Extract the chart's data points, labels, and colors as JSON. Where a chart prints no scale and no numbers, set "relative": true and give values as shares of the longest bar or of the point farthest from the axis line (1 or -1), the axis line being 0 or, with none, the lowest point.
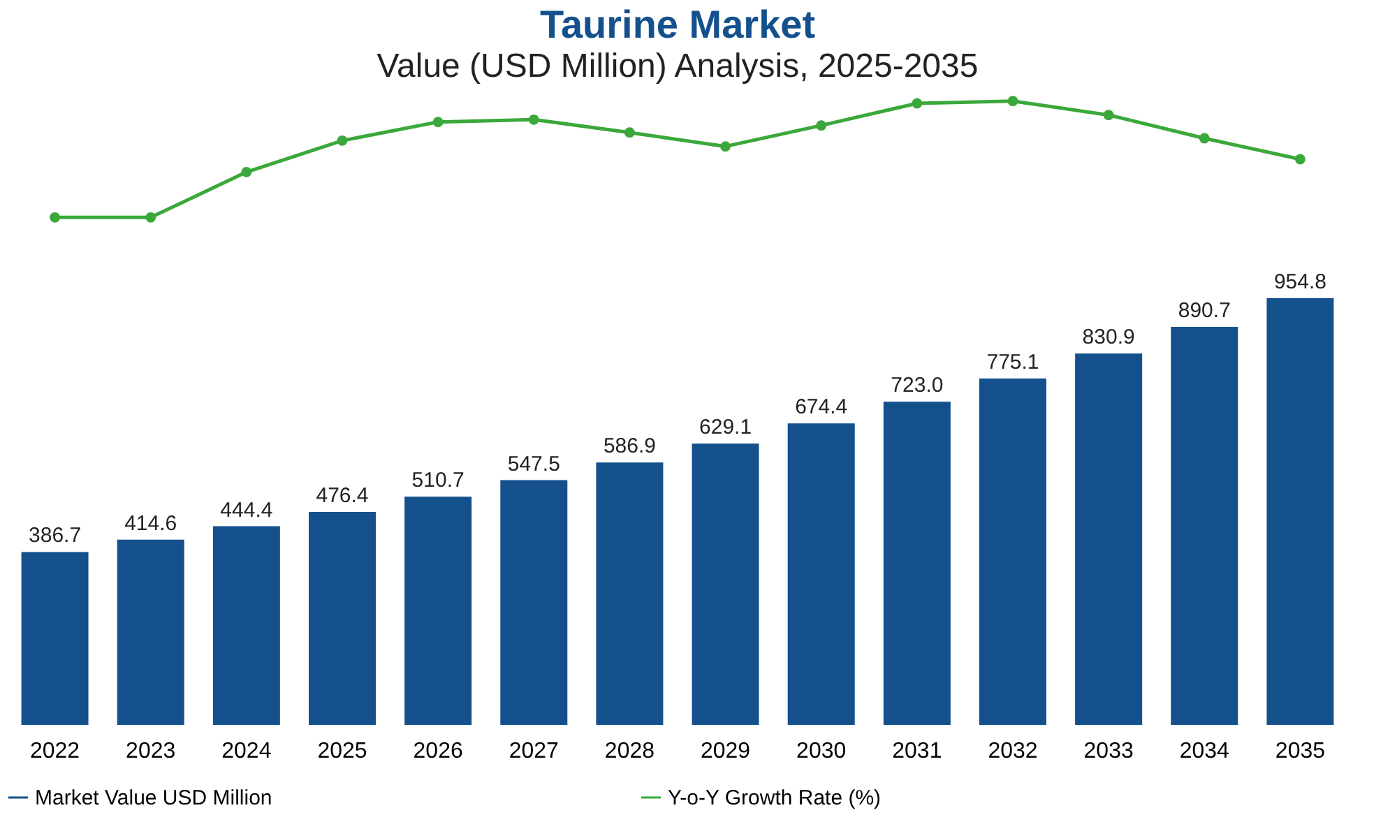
{
  "chart_data": [
    {
      "type": "line",
      "title": "Taurine Market",
      "subtitle": "Value (USD Million) Analysis, 2025-2035",
      "categories": [
        "2022",
        "2023",
        "2024",
        "2025",
        "2026",
        "2027",
        "2028",
        "2029",
        "2030",
        "2031",
        "2032",
        "2033",
        "2034",
        "2035"
      ],
      "series": [
        {
          "name": "Y-o-Y Growth Rate (%)",
          "color": "#3aa83a",
          "values": [
            0,
            0,
            0.39,
            0.66,
            0.82,
            0.84,
            0.73,
            0.61,
            0.79,
            0.98,
            1,
            0.88,
            0.68,
            0.5
          ]
        }
      ],
      "relative": true,
      "marker": "circle",
      "tick_labels": false,
      "line_style": "solid"
    },
    {
      "type": "bar",
      "categories": [
        "2022",
        "2023",
        "2024",
        "2025",
        "2026",
        "2027",
        "2028",
        "2029",
        "2030",
        "2031",
        "2032",
        "2033",
        "2034",
        "2035"
      ],
      "series": [
        {
          "name": "Market Value USD Million",
          "color": "#14518c",
          "values": [
            386.7,
            414.6,
            444.4,
            476.4,
            510.7,
            547.5,
            586.9,
            629.1,
            674.4,
            723.0,
            775.1,
            830.9,
            890.7,
            954.8
          ],
          "value_labels": [
            "386.7",
            "414.6",
            "444.4",
            "476.4",
            "510.7",
            "547.5",
            "586.9",
            "629.1",
            "674.4",
            "723.0",
            "775.1",
            "830.9",
            "890.7",
            "954.8"
          ]
        }
      ],
      "legend": "bottom",
      "tick_labels": "x"
    }
  ]
}
